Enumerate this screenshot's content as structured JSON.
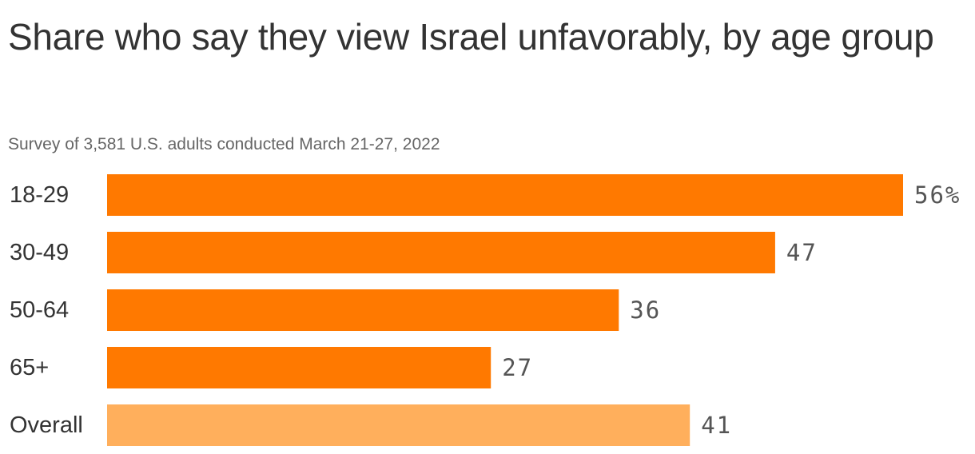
{
  "chart_data": {
    "type": "bar",
    "orientation": "horizontal",
    "title": "Share who say they view Israel unfavorably, by age group",
    "subtitle": "Survey of 3,581 U.S. adults conducted March 21-27, 2022",
    "categories": [
      "18-29",
      "30-49",
      "50-64",
      "65+",
      "Overall"
    ],
    "values": [
      56,
      47,
      36,
      27,
      41
    ],
    "value_labels": [
      "56%",
      "47",
      "36",
      "27",
      "41"
    ],
    "xlim": [
      0,
      56
    ],
    "grid": false,
    "xlabel": "",
    "ylabel": "",
    "colors": {
      "group": "#FF7900",
      "overall": "#FFAF5C"
    }
  }
}
